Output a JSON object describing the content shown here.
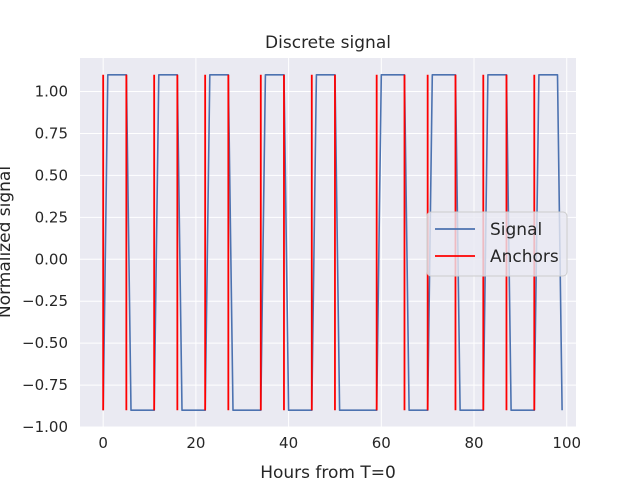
{
  "chart_data": {
    "type": "line",
    "title": "Discrete signal",
    "xlabel": "Hours from T=0",
    "ylabel": "Normalized signal",
    "xlim": [
      -5,
      102
    ],
    "ylim": [
      -1.0,
      1.2
    ],
    "xticks": [
      0,
      20,
      40,
      60,
      80,
      100
    ],
    "yticks": [
      -1.0,
      -0.75,
      -0.5,
      -0.25,
      0.0,
      0.25,
      0.5,
      0.75,
      1.0
    ],
    "ytick_labels": [
      "−1.00",
      "−0.75",
      "−0.50",
      "−0.25",
      "0.00",
      "0.25",
      "0.50",
      "0.75",
      "1.00"
    ],
    "xtick_labels": [
      "0",
      "20",
      "40",
      "60",
      "80",
      "100"
    ],
    "grid": true,
    "legend_position": "center-right",
    "background": "#eaeaf2",
    "series": [
      {
        "name": "Signal",
        "color": "#4c72b0",
        "x": [
          0,
          1,
          5,
          6,
          11,
          12,
          16,
          17,
          22,
          23,
          27,
          28,
          34,
          35,
          39,
          40,
          45,
          46,
          50,
          51,
          59,
          60,
          65,
          66,
          70,
          71,
          76,
          77,
          82,
          83,
          87,
          88,
          93,
          94,
          98,
          99
        ],
        "y": [
          -0.9,
          1.1,
          1.1,
          -0.9,
          -0.9,
          1.1,
          1.1,
          -0.9,
          -0.9,
          1.1,
          1.1,
          -0.9,
          -0.9,
          1.1,
          1.1,
          -0.9,
          -0.9,
          1.1,
          1.1,
          -0.9,
          -0.9,
          1.1,
          1.1,
          -0.9,
          -0.9,
          1.1,
          1.1,
          -0.9,
          -0.9,
          1.1,
          1.1,
          -0.9,
          -0.9,
          1.1,
          1.1,
          -0.9
        ]
      }
    ],
    "anchors": {
      "name": "Anchors",
      "color": "#ff0000",
      "x": [
        0,
        5,
        11,
        16,
        22,
        27,
        34,
        39,
        45,
        50,
        59,
        65,
        70,
        76,
        82,
        87,
        93
      ],
      "y_range": [
        -0.9,
        1.1
      ]
    }
  }
}
